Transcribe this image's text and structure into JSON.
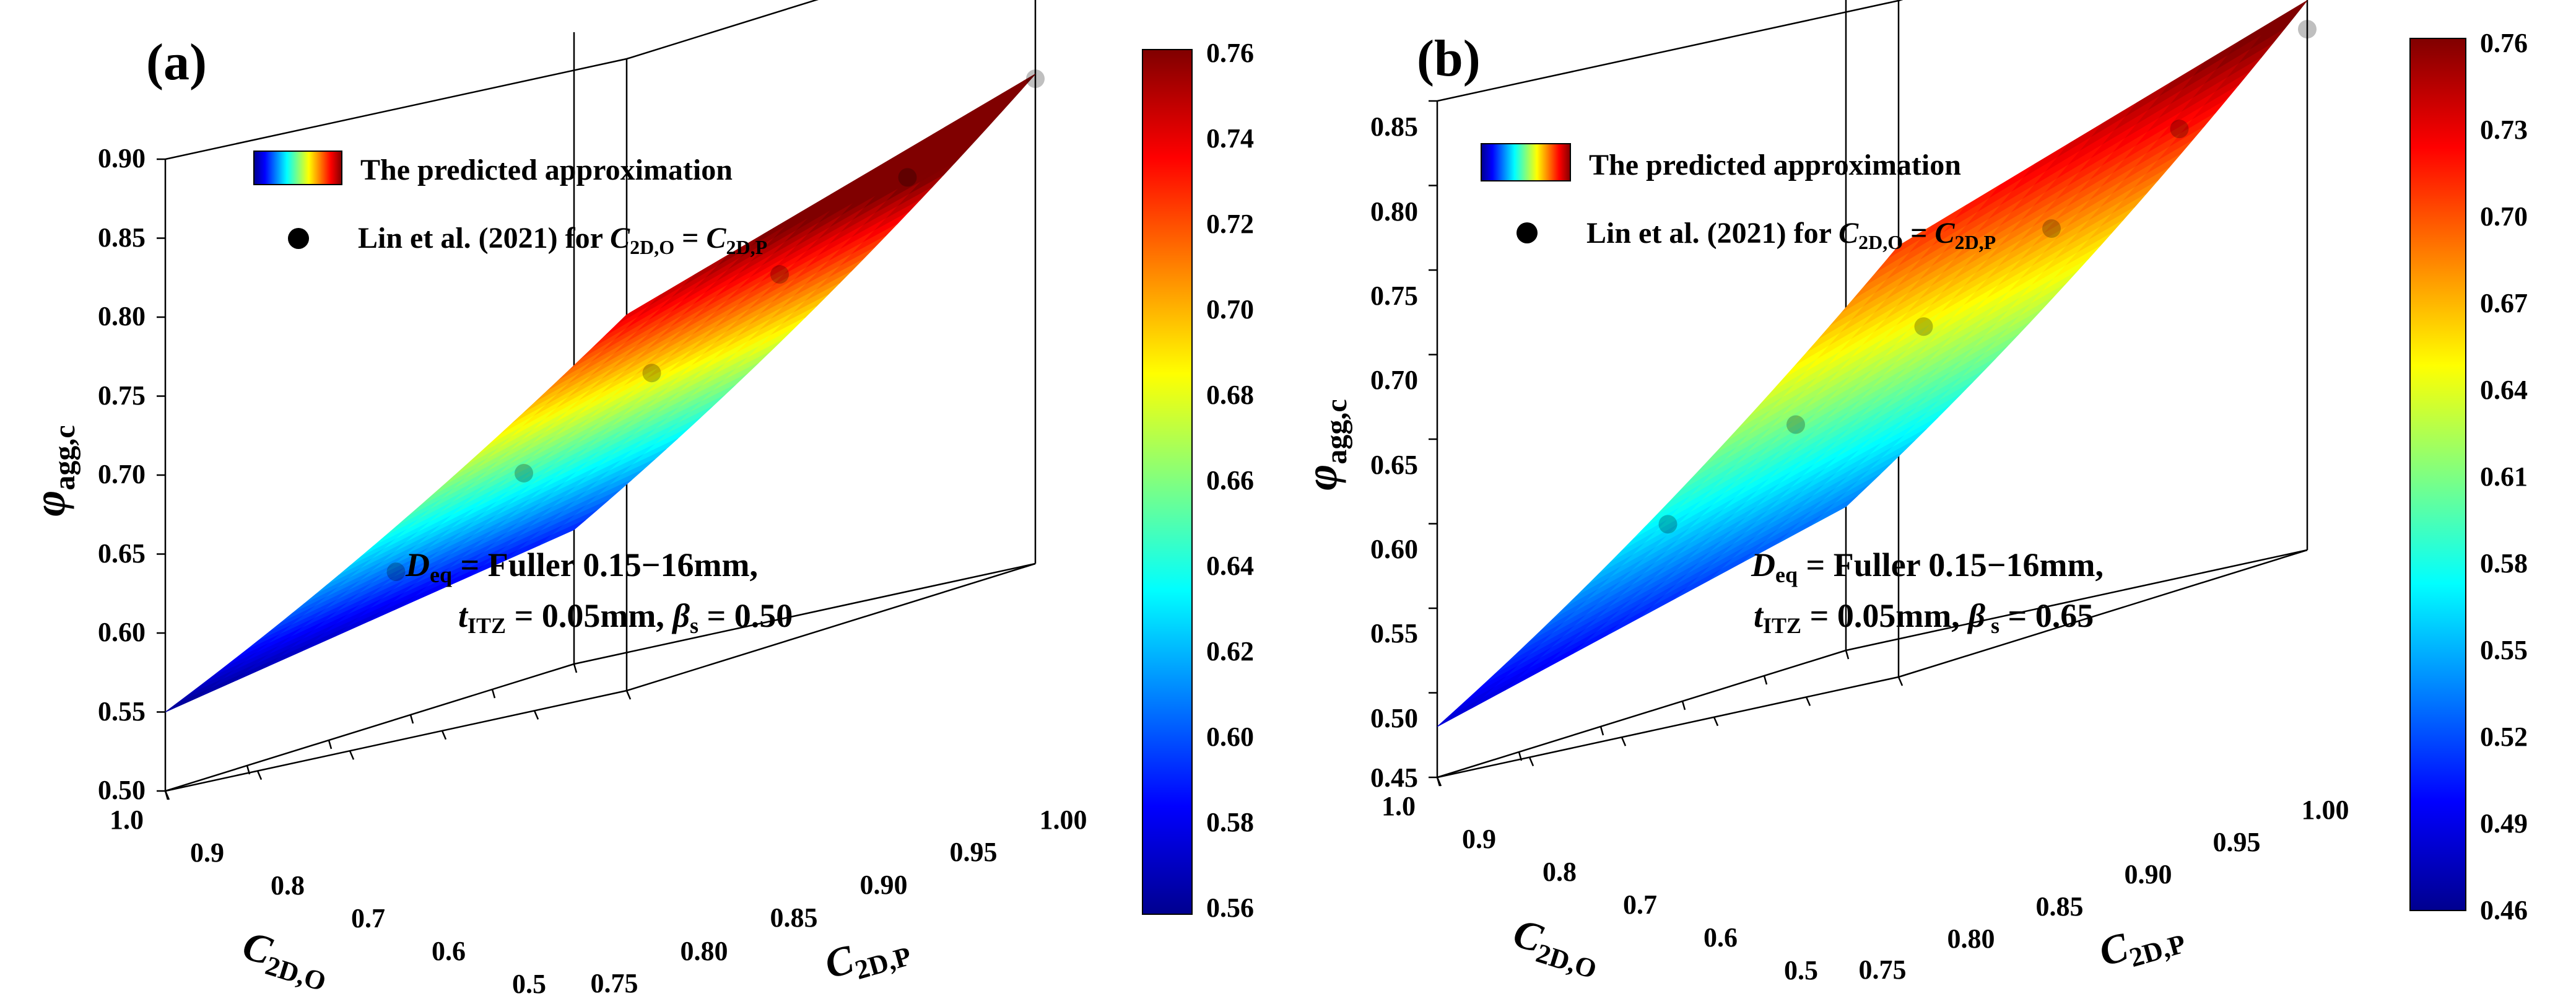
{
  "colors": {
    "jet": [
      "#00008f",
      "#0000ff",
      "#0080ff",
      "#00ffff",
      "#80ff80",
      "#ffff00",
      "#ff8000",
      "#ff0000",
      "#800000"
    ],
    "axis": "#000000",
    "point": "#000000"
  },
  "legend": {
    "surface_label": "The predicted approximation",
    "points_prefix": "Lin et al. (2021) for ",
    "points_lhs": "C",
    "points_lhs_sub": "2D,O",
    "points_eq": " = ",
    "points_rhs": "C",
    "points_rhs_sub": "2D,P"
  },
  "axis_labels": {
    "z_symbol": "φ",
    "z_sub": "agg,c",
    "x_main": "C",
    "x_sub": "2D,O",
    "y_main": "C",
    "y_sub": "2D,P"
  },
  "chart_data": [
    {
      "type": "surface3d",
      "panel_label": "(a)",
      "annotation": {
        "line1_sym": "D",
        "line1_sub": "eq",
        "line1_rest": " = Fuller 0.15−16mm,",
        "line2_sym": "t",
        "line2_sub": "ITZ",
        "line2_mid": " = 0.05mm,  ",
        "line2_beta": "β",
        "line2_beta_sub": "s",
        "line2_rest": " = 0.50"
      },
      "xlabel": "C2D,O",
      "ylabel": "C2D,P",
      "zlabel": "φagg,c",
      "x_ticks": [
        "1.0",
        "0.9",
        "0.8",
        "0.7",
        "0.6",
        "0.5"
      ],
      "y_ticks": [
        "0.75",
        "0.80",
        "0.85",
        "0.90",
        "0.95",
        "1.00"
      ],
      "z_ticks": [
        "0.90",
        "0.85",
        "0.80",
        "0.75",
        "0.70",
        "0.65",
        "0.60",
        "0.55",
        "0.50"
      ],
      "xlim": [
        0.5,
        1.0
      ],
      "ylim": [
        0.75,
        1.0
      ],
      "zlim": [
        0.5,
        0.9
      ],
      "surface_corners": {
        "x1_y075": 0.738,
        "x1_y1": 0.81,
        "x05_y075": 0.55,
        "x05_y1": 0.585
      },
      "colorbar": {
        "min": 0.55,
        "max": 0.76,
        "ticks": [
          "0.76",
          "0.74",
          "0.72",
          "0.70",
          "0.68",
          "0.66",
          "0.64",
          "0.62",
          "0.60",
          "0.58",
          "0.56"
        ]
      },
      "points": [
        {
          "x": 0.75,
          "y": 0.75,
          "z": 0.607
        },
        {
          "x": 0.8,
          "y": 0.8,
          "z": 0.647
        },
        {
          "x": 0.85,
          "y": 0.85,
          "z": 0.688
        },
        {
          "x": 0.9,
          "y": 0.9,
          "z": 0.728
        },
        {
          "x": 0.95,
          "y": 0.95,
          "z": 0.767
        },
        {
          "x": 1.0,
          "y": 1.0,
          "z": 0.807
        }
      ]
    },
    {
      "type": "surface3d",
      "panel_label": "(b)",
      "annotation": {
        "line1_sym": "D",
        "line1_sub": "eq",
        "line1_rest": " = Fuller 0.15−16mm,",
        "line2_sym": "t",
        "line2_sub": "ITZ",
        "line2_mid": " = 0.05mm,  ",
        "line2_beta": "β",
        "line2_beta_sub": " s",
        "line2_rest": " = 0.65"
      },
      "xlabel": "C2D,O",
      "ylabel": "C2D,P",
      "zlabel": "φagg,c",
      "x_ticks": [
        "1.0",
        "0.9",
        "0.8",
        "0.7",
        "0.6",
        "0.5"
      ],
      "y_ticks": [
        "0.75",
        "0.80",
        "0.85",
        "0.90",
        "0.95",
        "1.00"
      ],
      "z_ticks": [
        "0.85",
        "0.80",
        "0.75",
        "0.70",
        "0.65",
        "0.60",
        "0.55",
        "0.50",
        "0.45"
      ],
      "xlim": [
        0.5,
        1.0
      ],
      "ylim": [
        0.75,
        1.0
      ],
      "zlim": [
        0.45,
        0.85
      ],
      "surface_corners": {
        "x1_y075": 0.705,
        "x1_y1": 0.775,
        "x05_y075": 0.48,
        "x05_y1": 0.535
      },
      "colorbar": {
        "min": 0.46,
        "max": 0.76,
        "ticks": [
          "0.76",
          "0.73",
          "0.70",
          "0.67",
          "0.64",
          "0.61",
          "0.58",
          "0.55",
          "0.52",
          "0.49",
          "0.46"
        ]
      },
      "points": [
        {
          "x": 0.75,
          "y": 0.75,
          "z": 0.57
        },
        {
          "x": 0.8,
          "y": 0.8,
          "z": 0.608
        },
        {
          "x": 0.85,
          "y": 0.85,
          "z": 0.645
        },
        {
          "x": 0.9,
          "y": 0.9,
          "z": 0.682
        },
        {
          "x": 0.95,
          "y": 0.95,
          "z": 0.72
        },
        {
          "x": 1.0,
          "y": 1.0,
          "z": 0.758
        }
      ]
    }
  ]
}
